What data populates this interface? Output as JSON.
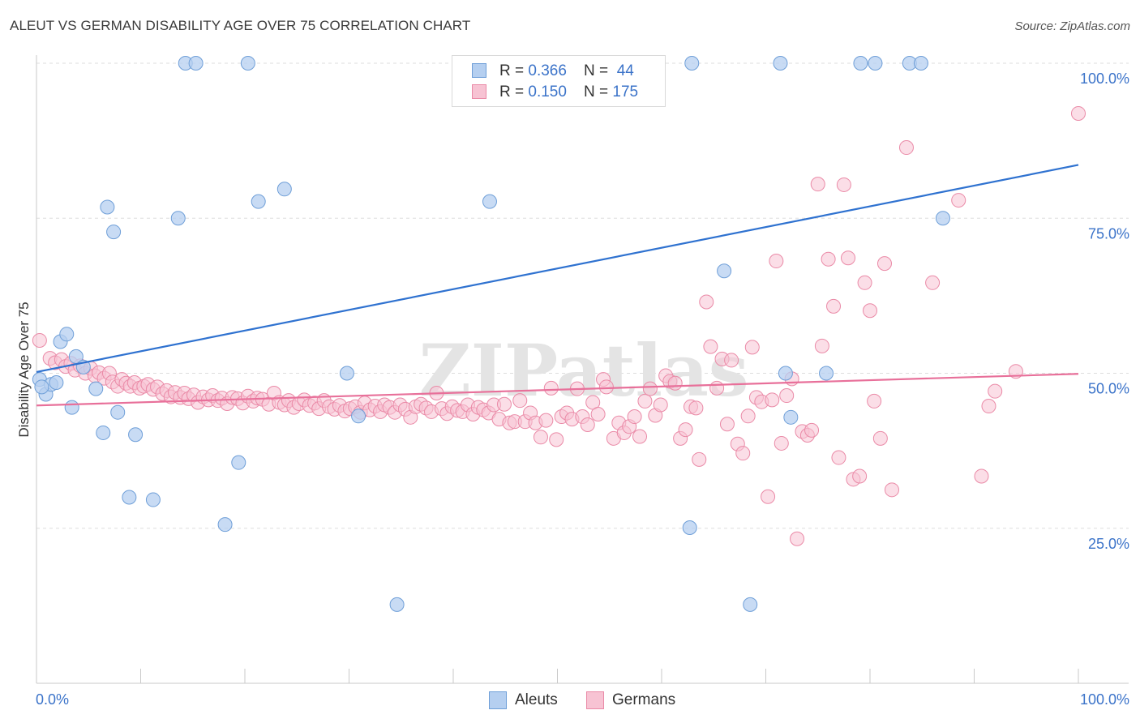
{
  "title": "ALEUT VS GERMAN DISABILITY AGE OVER 75 CORRELATION CHART",
  "source": "Source: ZipAtlas.com",
  "watermark": "ZIPatlas",
  "colors": {
    "aleut_fill": "#b5cff0",
    "aleut_stroke": "#6f9fd8",
    "aleut_line": "#2f72d0",
    "german_fill": "#f7c3d3",
    "german_stroke": "#ea8aa7",
    "german_line": "#e8709a",
    "axis_text": "#3b73c9",
    "grid": "#dddddd"
  },
  "legend": {
    "aleut": {
      "r_label": "R = ",
      "r_value": "0.366",
      "n_label": "N = ",
      "n_value": "44"
    },
    "german": {
      "r_label": "R = ",
      "r_value": "0.150",
      "n_label": "N = ",
      "n_value": "175"
    }
  },
  "bottom_legend": {
    "aleut": "Aleuts",
    "german": "Germans"
  },
  "chart_data": {
    "type": "scatter",
    "title": "ALEUT VS GERMAN DISABILITY AGE OVER 75 CORRELATION CHART",
    "xlabel": "",
    "ylabel": "Disability Age Over 75",
    "xlim": [
      0,
      100
    ],
    "ylim": [
      0,
      100
    ],
    "x_tick_labels": [
      "0.0%",
      "100.0%"
    ],
    "y_ticks": [
      25,
      50,
      75,
      100
    ],
    "y_tick_labels": [
      "25.0%",
      "50.0%",
      "75.0%",
      "100.0%"
    ],
    "grid": true,
    "series": [
      {
        "name": "Aleuts",
        "trend": {
          "x": [
            0,
            100
          ],
          "y": [
            50.2,
            83.6
          ]
        },
        "points": [
          [
            0.3,
            49.0
          ],
          [
            0.9,
            46.6
          ],
          [
            1.4,
            48.2
          ],
          [
            1.9,
            48.5
          ],
          [
            2.3,
            55.1
          ],
          [
            2.9,
            56.3
          ],
          [
            3.4,
            44.5
          ],
          [
            3.8,
            52.7
          ],
          [
            4.5,
            51.0
          ],
          [
            5.7,
            47.5
          ],
          [
            6.4,
            40.4
          ],
          [
            6.8,
            76.8
          ],
          [
            7.4,
            72.8
          ],
          [
            7.8,
            43.7
          ],
          [
            8.9,
            30.0
          ],
          [
            9.5,
            40.1
          ],
          [
            11.2,
            29.6
          ],
          [
            13.6,
            75.0
          ],
          [
            14.3,
            100
          ],
          [
            15.3,
            100
          ],
          [
            18.1,
            25.6
          ],
          [
            19.4,
            35.6
          ],
          [
            20.3,
            100
          ],
          [
            21.3,
            77.7
          ],
          [
            23.8,
            79.7
          ],
          [
            29.8,
            50.0
          ],
          [
            30.9,
            43.1
          ],
          [
            34.6,
            12.7
          ],
          [
            43.5,
            77.7
          ],
          [
            52.3,
            100
          ],
          [
            66.0,
            66.5
          ],
          [
            72.4,
            42.9
          ],
          [
            62.7,
            25.1
          ],
          [
            62.9,
            100
          ],
          [
            68.5,
            12.7
          ],
          [
            71.4,
            100
          ],
          [
            71.9,
            50.0
          ],
          [
            75.8,
            50.0
          ],
          [
            79.1,
            100
          ],
          [
            80.5,
            100
          ],
          [
            83.8,
            100
          ],
          [
            84.9,
            100
          ],
          [
            87.0,
            75.0
          ],
          [
            0.5,
            47.8
          ]
        ]
      },
      {
        "name": "Germans",
        "trend": {
          "x": [
            0,
            100
          ],
          "y": [
            44.8,
            49.9
          ]
        },
        "points": [
          [
            0.3,
            55.3
          ],
          [
            1.3,
            52.4
          ],
          [
            1.8,
            51.7
          ],
          [
            2.4,
            52.2
          ],
          [
            2.8,
            51.1
          ],
          [
            3.3,
            51.6
          ],
          [
            3.7,
            50.5
          ],
          [
            4.2,
            51.2
          ],
          [
            4.7,
            50.0
          ],
          [
            5.2,
            50.8
          ],
          [
            5.6,
            49.6
          ],
          [
            6.0,
            50.1
          ],
          [
            6.5,
            49.2
          ],
          [
            7.0,
            50.0
          ],
          [
            7.3,
            48.6
          ],
          [
            7.8,
            47.9
          ],
          [
            8.2,
            49.0
          ],
          [
            8.6,
            48.4
          ],
          [
            9.0,
            47.9
          ],
          [
            9.4,
            48.5
          ],
          [
            9.9,
            47.6
          ],
          [
            10.3,
            47.9
          ],
          [
            10.7,
            48.2
          ],
          [
            11.2,
            47.4
          ],
          [
            11.6,
            47.8
          ],
          [
            12.1,
            46.7
          ],
          [
            12.5,
            47.2
          ],
          [
            12.9,
            46.2
          ],
          [
            13.3,
            46.9
          ],
          [
            13.8,
            46.1
          ],
          [
            14.2,
            46.8
          ],
          [
            14.6,
            45.9
          ],
          [
            15.1,
            46.5
          ],
          [
            15.5,
            45.3
          ],
          [
            16.0,
            46.2
          ],
          [
            16.5,
            45.7
          ],
          [
            16.9,
            46.4
          ],
          [
            17.4,
            45.6
          ],
          [
            17.8,
            46.0
          ],
          [
            18.3,
            45.1
          ],
          [
            18.8,
            46.1
          ],
          [
            19.3,
            45.9
          ],
          [
            19.8,
            45.2
          ],
          [
            20.3,
            46.3
          ],
          [
            20.8,
            45.5
          ],
          [
            21.2,
            46.0
          ],
          [
            21.7,
            45.8
          ],
          [
            22.3,
            45.0
          ],
          [
            22.8,
            46.8
          ],
          [
            23.3,
            45.3
          ],
          [
            23.8,
            44.9
          ],
          [
            24.2,
            45.6
          ],
          [
            24.7,
            44.5
          ],
          [
            25.2,
            45.1
          ],
          [
            25.7,
            45.7
          ],
          [
            26.2,
            44.8
          ],
          [
            26.7,
            45.2
          ],
          [
            27.1,
            44.3
          ],
          [
            27.6,
            45.6
          ],
          [
            28.1,
            44.6
          ],
          [
            28.6,
            44.2
          ],
          [
            29.1,
            44.8
          ],
          [
            29.6,
            43.9
          ],
          [
            30.1,
            44.3
          ],
          [
            30.6,
            44.6
          ],
          [
            31.1,
            43.7
          ],
          [
            31.5,
            45.2
          ],
          [
            32.0,
            44.1
          ],
          [
            32.5,
            44.7
          ],
          [
            33.0,
            43.8
          ],
          [
            33.4,
            44.9
          ],
          [
            33.9,
            44.5
          ],
          [
            34.4,
            43.7
          ],
          [
            34.9,
            44.9
          ],
          [
            35.4,
            44.2
          ],
          [
            35.9,
            42.9
          ],
          [
            36.4,
            44.6
          ],
          [
            36.9,
            45.0
          ],
          [
            37.4,
            44.4
          ],
          [
            37.9,
            43.8
          ],
          [
            38.4,
            46.8
          ],
          [
            38.9,
            44.3
          ],
          [
            39.4,
            43.5
          ],
          [
            39.9,
            44.6
          ],
          [
            40.4,
            44.0
          ],
          [
            40.9,
            43.8
          ],
          [
            41.4,
            44.9
          ],
          [
            41.9,
            43.4
          ],
          [
            42.4,
            44.5
          ],
          [
            42.9,
            44.1
          ],
          [
            43.4,
            43.6
          ],
          [
            43.9,
            44.9
          ],
          [
            44.4,
            42.6
          ],
          [
            44.9,
            45.0
          ],
          [
            45.4,
            42.0
          ],
          [
            45.9,
            42.2
          ],
          [
            46.4,
            45.6
          ],
          [
            46.9,
            42.2
          ],
          [
            47.4,
            43.6
          ],
          [
            47.9,
            42.0
          ],
          [
            48.4,
            39.7
          ],
          [
            48.9,
            42.4
          ],
          [
            49.4,
            47.6
          ],
          [
            49.9,
            39.3
          ],
          [
            50.4,
            43.0
          ],
          [
            50.9,
            43.6
          ],
          [
            51.4,
            42.6
          ],
          [
            51.9,
            47.5
          ],
          [
            52.4,
            43.0
          ],
          [
            52.9,
            41.7
          ],
          [
            53.4,
            45.3
          ],
          [
            53.9,
            43.4
          ],
          [
            54.4,
            49.0
          ],
          [
            54.7,
            47.8
          ],
          [
            55.4,
            39.5
          ],
          [
            55.9,
            42.0
          ],
          [
            56.4,
            40.4
          ],
          [
            56.9,
            41.4
          ],
          [
            57.4,
            43.0
          ],
          [
            57.9,
            39.8
          ],
          [
            58.4,
            45.5
          ],
          [
            58.9,
            47.5
          ],
          [
            59.4,
            43.2
          ],
          [
            59.9,
            44.9
          ],
          [
            60.4,
            49.6
          ],
          [
            60.8,
            48.7
          ],
          [
            61.3,
            48.4
          ],
          [
            61.8,
            39.5
          ],
          [
            62.3,
            40.9
          ],
          [
            62.8,
            44.6
          ],
          [
            63.3,
            44.4
          ],
          [
            63.6,
            36.1
          ],
          [
            64.3,
            61.5
          ],
          [
            64.7,
            54.3
          ],
          [
            65.3,
            47.6
          ],
          [
            65.8,
            52.3
          ],
          [
            66.3,
            41.8
          ],
          [
            66.7,
            52.1
          ],
          [
            67.3,
            38.6
          ],
          [
            67.8,
            37.1
          ],
          [
            68.3,
            43.1
          ],
          [
            68.7,
            54.2
          ],
          [
            69.1,
            46.1
          ],
          [
            69.6,
            45.4
          ],
          [
            70.2,
            30.1
          ],
          [
            70.6,
            45.7
          ],
          [
            71.0,
            68.1
          ],
          [
            71.5,
            38.7
          ],
          [
            72.0,
            46.4
          ],
          [
            72.5,
            49.1
          ],
          [
            73.0,
            23.3
          ],
          [
            73.5,
            40.6
          ],
          [
            74.0,
            40.0
          ],
          [
            74.4,
            40.8
          ],
          [
            75.0,
            80.5
          ],
          [
            75.4,
            54.4
          ],
          [
            76.0,
            68.4
          ],
          [
            76.5,
            60.8
          ],
          [
            77.0,
            36.4
          ],
          [
            77.5,
            80.4
          ],
          [
            77.9,
            68.6
          ],
          [
            78.4,
            32.9
          ],
          [
            79.0,
            33.4
          ],
          [
            79.5,
            64.6
          ],
          [
            80.0,
            60.1
          ],
          [
            80.4,
            45.5
          ],
          [
            81.0,
            39.5
          ],
          [
            81.4,
            67.7
          ],
          [
            82.1,
            31.2
          ],
          [
            83.5,
            86.4
          ],
          [
            86.0,
            64.6
          ],
          [
            88.5,
            77.9
          ],
          [
            90.7,
            33.4
          ],
          [
            91.4,
            44.7
          ],
          [
            92.0,
            47.1
          ],
          [
            94.0,
            50.3
          ],
          [
            100.0,
            91.9
          ]
        ]
      }
    ]
  }
}
